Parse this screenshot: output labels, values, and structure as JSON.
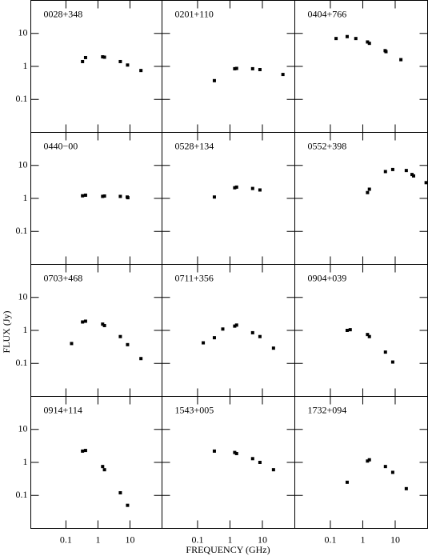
{
  "axis_labels": {
    "x": "FREQUENCY (GHz)",
    "y": "FLUX (Jy)"
  },
  "chart_data": [
    {
      "type": "scatter",
      "title": "0028+348",
      "x": [
        0.33,
        0.41,
        1.4,
        1.6,
        5,
        8.4,
        22
      ],
      "values": [
        1.4,
        1.85,
        1.95,
        1.9,
        1.4,
        1.1,
        0.75
      ],
      "xlim": [
        0.008,
        100
      ],
      "ylim": [
        0.01,
        100
      ],
      "xticks": [
        0.1,
        1,
        10
      ],
      "yticks": [
        0.1,
        1,
        10
      ],
      "log_x": true,
      "log_y": true,
      "color": "#000000"
    },
    {
      "type": "scatter",
      "title": "0201+110",
      "x": [
        0.33,
        1.4,
        1.6,
        5,
        8.4,
        43
      ],
      "values": [
        0.37,
        0.85,
        0.87,
        0.85,
        0.8,
        0.57
      ],
      "xlim": [
        0.008,
        100
      ],
      "ylim": [
        0.01,
        100
      ],
      "xticks": [
        0.1,
        1,
        10
      ],
      "yticks": [
        0.1,
        1,
        10
      ],
      "log_x": true,
      "log_y": true,
      "color": "#000000"
    },
    {
      "type": "scatter",
      "title": "0404+766",
      "x": [
        0.15,
        0.33,
        0.61,
        1.4,
        1.6,
        4.9,
        5.2,
        15
      ],
      "values": [
        7,
        8,
        7,
        5.5,
        5,
        3,
        2.8,
        1.6
      ],
      "xlim": [
        0.008,
        100
      ],
      "ylim": [
        0.01,
        100
      ],
      "xticks": [
        0.1,
        1,
        10
      ],
      "yticks": [
        0.1,
        1,
        10
      ],
      "log_x": true,
      "log_y": true,
      "color": "#000000"
    },
    {
      "type": "scatter",
      "title": "0440−00",
      "x": [
        0.33,
        0.41,
        1.4,
        1.6,
        5,
        8.2,
        8.6
      ],
      "values": [
        1.2,
        1.25,
        1.15,
        1.18,
        1.15,
        1.1,
        1.05
      ],
      "xlim": [
        0.008,
        100
      ],
      "ylim": [
        0.01,
        100
      ],
      "xticks": [
        0.1,
        1,
        10
      ],
      "yticks": [
        0.1,
        1,
        10
      ],
      "log_x": true,
      "log_y": true,
      "color": "#000000"
    },
    {
      "type": "scatter",
      "title": "0528+134",
      "x": [
        0.33,
        1.4,
        1.6,
        5,
        8.4
      ],
      "values": [
        1.1,
        2.1,
        2.2,
        2,
        1.8
      ],
      "xlim": [
        0.008,
        100
      ],
      "ylim": [
        0.01,
        100
      ],
      "xticks": [
        0.1,
        1,
        10
      ],
      "yticks": [
        0.1,
        1,
        10
      ],
      "log_x": true,
      "log_y": true,
      "color": "#000000"
    },
    {
      "type": "scatter",
      "title": "0552+398",
      "x": [
        1.4,
        1.6,
        5,
        8.4,
        22,
        33,
        37,
        90
      ],
      "values": [
        1.5,
        1.9,
        6.5,
        7.5,
        7,
        5.3,
        4.8,
        3
      ],
      "xlim": [
        0.008,
        100
      ],
      "ylim": [
        0.01,
        100
      ],
      "xticks": [
        0.1,
        1,
        10
      ],
      "yticks": [
        0.1,
        1,
        10
      ],
      "log_x": true,
      "log_y": true,
      "color": "#000000"
    },
    {
      "type": "scatter",
      "title": "0703+468",
      "x": [
        0.15,
        0.33,
        0.41,
        1.4,
        1.6,
        5,
        8.4,
        22
      ],
      "values": [
        0.4,
        1.8,
        1.9,
        1.55,
        1.4,
        0.65,
        0.37,
        0.14
      ],
      "xlim": [
        0.008,
        100
      ],
      "ylim": [
        0.01,
        100
      ],
      "xticks": [
        0.1,
        1,
        10
      ],
      "yticks": [
        0.1,
        1,
        10
      ],
      "log_x": true,
      "log_y": true,
      "color": "#000000"
    },
    {
      "type": "scatter",
      "title": "0711+356",
      "x": [
        0.15,
        0.33,
        0.6,
        1.4,
        1.6,
        5,
        8.4,
        22
      ],
      "values": [
        0.42,
        0.6,
        1.1,
        1.35,
        1.45,
        0.85,
        0.65,
        0.29
      ],
      "xlim": [
        0.008,
        100
      ],
      "ylim": [
        0.01,
        100
      ],
      "xticks": [
        0.1,
        1,
        10
      ],
      "yticks": [
        0.1,
        1,
        10
      ],
      "log_x": true,
      "log_y": true,
      "color": "#000000"
    },
    {
      "type": "scatter",
      "title": "0904+039",
      "x": [
        0.33,
        0.41,
        1.4,
        1.6,
        5,
        8.4
      ],
      "values": [
        1,
        1.05,
        0.75,
        0.65,
        0.22,
        0.11
      ],
      "xlim": [
        0.008,
        100
      ],
      "ylim": [
        0.01,
        100
      ],
      "xticks": [
        0.1,
        1,
        10
      ],
      "yticks": [
        0.1,
        1,
        10
      ],
      "log_x": true,
      "log_y": true,
      "color": "#000000"
    },
    {
      "type": "scatter",
      "title": "0914+114",
      "x": [
        0.33,
        0.41,
        1.4,
        1.6,
        5,
        8.4
      ],
      "values": [
        2.2,
        2.3,
        0.75,
        0.6,
        0.12,
        0.05
      ],
      "xlim": [
        0.008,
        100
      ],
      "ylim": [
        0.01,
        100
      ],
      "xticks": [
        0.1,
        1,
        10
      ],
      "yticks": [
        0.1,
        1,
        10
      ],
      "log_x": true,
      "log_y": true,
      "color": "#000000"
    },
    {
      "type": "scatter",
      "title": "1543+005",
      "x": [
        0.33,
        1.4,
        1.6,
        5,
        8.4,
        22
      ],
      "values": [
        2.2,
        2,
        1.85,
        1.3,
        1,
        0.6
      ],
      "xlim": [
        0.008,
        100
      ],
      "ylim": [
        0.01,
        100
      ],
      "xticks": [
        0.1,
        1,
        10
      ],
      "yticks": [
        0.1,
        1,
        10
      ],
      "log_x": true,
      "log_y": true,
      "color": "#000000"
    },
    {
      "type": "scatter",
      "title": "1732+094",
      "x": [
        0.33,
        1.4,
        1.6,
        5,
        8.4,
        22
      ],
      "values": [
        0.25,
        1.1,
        1.2,
        0.75,
        0.5,
        0.16
      ],
      "xlim": [
        0.008,
        100
      ],
      "ylim": [
        0.01,
        100
      ],
      "xticks": [
        0.1,
        1,
        10
      ],
      "yticks": [
        0.1,
        1,
        10
      ],
      "log_x": true,
      "log_y": true,
      "color": "#000000"
    }
  ]
}
